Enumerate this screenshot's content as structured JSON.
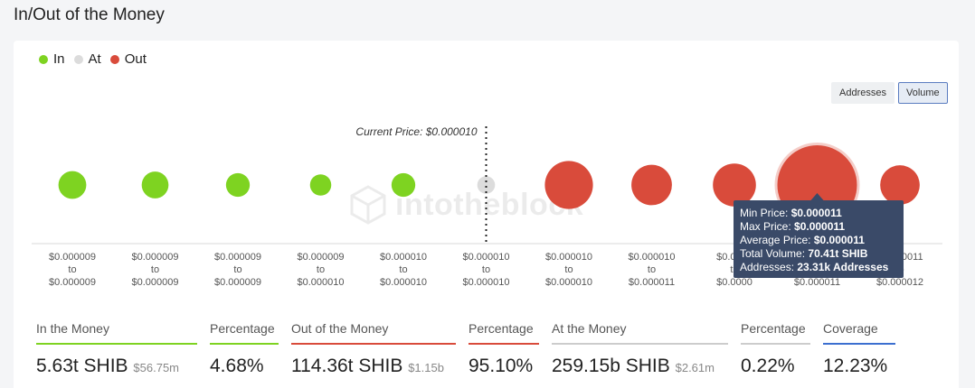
{
  "page": {
    "title": "In/Out of the Money"
  },
  "legend": [
    {
      "label": "In",
      "color": "#7ed321"
    },
    {
      "label": "At",
      "color": "#dcdcdc"
    },
    {
      "label": "Out",
      "color": "#d94b3b"
    }
  ],
  "toggle": {
    "addresses_label": "Addresses",
    "volume_label": "Volume",
    "active": "Volume"
  },
  "watermark": "intotheblock",
  "chart_data": {
    "type": "scatter",
    "current_price_label": "Current Price: $0.000010",
    "current_price_index": 5,
    "size_metric": "Volume",
    "buckets": [
      {
        "range": [
          "$0.000009",
          "to",
          "$0.000009"
        ],
        "status": "In",
        "relative_size": 0.55
      },
      {
        "range": [
          "$0.000009",
          "to",
          "$0.000009"
        ],
        "status": "In",
        "relative_size": 0.53
      },
      {
        "range": [
          "$0.000009",
          "to",
          "$0.000009"
        ],
        "status": "In",
        "relative_size": 0.47
      },
      {
        "range": [
          "$0.000009",
          "to",
          "$0.000010"
        ],
        "status": "In",
        "relative_size": 0.42
      },
      {
        "range": [
          "$0.000010",
          "to",
          "$0.000010"
        ],
        "status": "In",
        "relative_size": 0.47
      },
      {
        "range": [
          "$0.000010",
          "to",
          "$0.000010"
        ],
        "status": "At",
        "relative_size": 0.35
      },
      {
        "range": [
          "$0.000010",
          "to",
          "$0.000010"
        ],
        "status": "Out",
        "relative_size": 0.95
      },
      {
        "range": [
          "$0.000010",
          "to",
          "$0.000011"
        ],
        "status": "Out",
        "relative_size": 0.8
      },
      {
        "range": [
          "$0.0000",
          "to",
          "$0.0000"
        ],
        "status": "Out",
        "relative_size": 0.85
      },
      {
        "range": [
          "$0.000011",
          "to",
          "$0.000011"
        ],
        "status": "Out",
        "relative_size": 1.0,
        "highlighted": true
      },
      {
        "range": [
          "$0.000011",
          "to",
          "$0.000012"
        ],
        "status": "Out",
        "relative_size": 0.78
      }
    ]
  },
  "tooltip": {
    "min_price_label": "Min Price:",
    "min_price_value": "$0.000011",
    "max_price_label": "Max Price:",
    "max_price_value": "$0.000011",
    "avg_price_label": "Average Price:",
    "avg_price_value": "$0.000011",
    "volume_label": "Total Volume:",
    "volume_value": "70.41t SHIB",
    "addresses_label": "Addresses:",
    "addresses_value": "23.31k Addresses"
  },
  "stats": [
    {
      "label": "In the Money",
      "value": "5.63t SHIB",
      "sub": "$56.75m",
      "color": "#7ed321"
    },
    {
      "label": "Percentage",
      "value": "4.68%",
      "sub": "",
      "color": "#7ed321"
    },
    {
      "label": "Out of the Money",
      "value": "114.36t SHIB",
      "sub": "$1.15b",
      "color": "#d94b3b"
    },
    {
      "label": "Percentage",
      "value": "95.10%",
      "sub": "",
      "color": "#d94b3b"
    },
    {
      "label": "At the Money",
      "value": "259.15b SHIB",
      "sub": "$2.61m",
      "color": "#cccccc"
    },
    {
      "label": "Percentage",
      "value": "0.22%",
      "sub": "",
      "color": "#cccccc"
    },
    {
      "label": "Coverage",
      "value": "12.23%",
      "sub": "",
      "color": "#3c6fd0"
    }
  ]
}
